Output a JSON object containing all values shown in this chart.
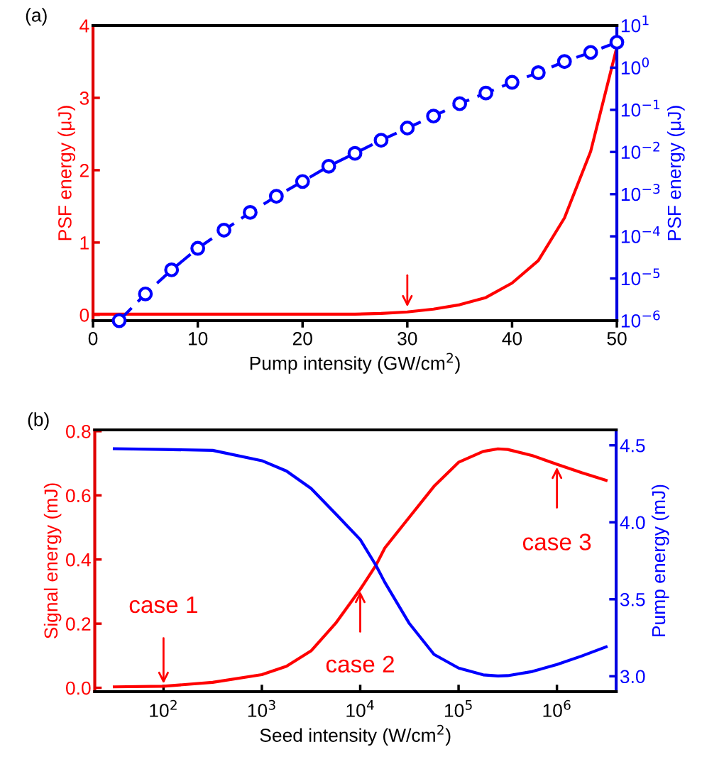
{
  "chart_data": [
    {
      "type": "line",
      "title": "(a)",
      "xlabel": "Pump intensity (GW/cm$^{2}$)",
      "ylabel": "PSF energy (μJ)",
      "y2label": "PSF energy (μJ)",
      "x": [
        0,
        2.5,
        5,
        7.5,
        10,
        12.5,
        15,
        17.5,
        20,
        22.5,
        25,
        27.5,
        30,
        32.5,
        35,
        37.5,
        40,
        42.5,
        45,
        47.5,
        50
      ],
      "series": [
        {
          "color": "#ff0000",
          "axis": "y",
          "marker": "none",
          "line_style": "solid",
          "values": [
            0.01,
            0.01,
            0.01,
            0.01,
            0.01,
            0.01,
            0.01,
            0.01,
            0.01,
            0.01,
            0.01,
            0.02,
            0.04,
            0.08,
            0.14,
            0.24,
            0.44,
            0.75,
            1.34,
            2.26,
            3.7
          ]
        },
        {
          "color": "#0000ff",
          "axis": "y2",
          "marker": "circle",
          "line_style": "dashed",
          "x": [
            2.5,
            5,
            7.5,
            10,
            12.5,
            15,
            17.5,
            20,
            22.5,
            25,
            27.5,
            30,
            32.5,
            35,
            37.5,
            40,
            42.5,
            45,
            47.5,
            50
          ],
          "values": [
            1e-06,
            4.3e-06,
            1.6e-05,
            5.2e-05,
            0.00014,
            0.00037,
            0.00089,
            0.002,
            0.0046,
            0.0093,
            0.019,
            0.037,
            0.071,
            0.14,
            0.25,
            0.45,
            0.76,
            1.4,
            2.3,
            4.0
          ]
        }
      ],
      "xlim": [
        0,
        50
      ],
      "xticks": [
        0,
        10,
        20,
        30,
        40,
        50
      ],
      "ylim": [
        -0.08,
        4
      ],
      "yticks": [
        0,
        1,
        2,
        3,
        4
      ],
      "log": "y2",
      "y2lim": [
        1e-06,
        10
      ],
      "y2ticks": [
        {
          "value": 1e-06,
          "label": "10$^{−6}$"
        },
        {
          "value": 1e-05,
          "label": "10$^{−5}$"
        },
        {
          "value": 0.0001,
          "label": "10$^{−4}$"
        },
        {
          "value": 0.001,
          "label": "10$^{−3}$"
        },
        {
          "value": 0.01,
          "label": "10$^{−2}$"
        },
        {
          "value": 0.1,
          "label": "10$^{−1}$"
        },
        {
          "value": 1,
          "label": "10$^{0}$"
        },
        {
          "value": 10,
          "label": "10$^{1}$"
        }
      ],
      "grid": false,
      "legend": false
    },
    {
      "type": "line",
      "title": "(b)",
      "xlabel": "Seed intensity (W/cm$^{2}$)",
      "ylabel": "Signal energy (mJ)",
      "y2label": "Pump energy (mJ)",
      "x": [
        31.6,
        100,
        316,
        1000,
        1778,
        3162,
        5623,
        10000,
        14454,
        17783,
        31623,
        56234,
        100000,
        177828,
        251189,
        316228,
        562341,
        1000000,
        1778279,
        3162278
      ],
      "series": [
        {
          "color": "#ff0000",
          "axis": "y",
          "values": [
            0.003,
            0.005,
            0.017,
            0.041,
            0.067,
            0.115,
            0.201,
            0.307,
            0.382,
            0.436,
            0.532,
            0.628,
            0.703,
            0.737,
            0.745,
            0.743,
            0.724,
            0.697,
            0.671,
            0.647
          ]
        },
        {
          "color": "#0000ff",
          "axis": "y2",
          "values": [
            4.478,
            4.473,
            4.467,
            4.4,
            4.333,
            4.22,
            4.055,
            3.888,
            3.72,
            3.61,
            3.342,
            3.142,
            3.053,
            3.009,
            3.002,
            3.004,
            3.031,
            3.076,
            3.131,
            3.191
          ]
        }
      ],
      "log": "x",
      "xlim": [
        20,
        4000000
      ],
      "xticks": [
        {
          "value": 100,
          "label": "10$^{2}$"
        },
        {
          "value": 1000,
          "label": "10$^{3}$"
        },
        {
          "value": 10000,
          "label": "10$^{4}$"
        },
        {
          "value": 100000,
          "label": "10$^{5}$"
        },
        {
          "value": 1000000,
          "label": "10$^{6}$"
        }
      ],
      "ylim": [
        -0.012,
        0.804
      ],
      "yticks": [
        {
          "value": 0,
          "label": "0.0"
        },
        0.2,
        0.4,
        0.6,
        0.8
      ],
      "y2lim": [
        2.9,
        4.6
      ],
      "y2ticks": [
        {
          "value": 3,
          "label": "3.0"
        },
        3.5,
        {
          "value": 4,
          "label": "4.0"
        },
        4.5
      ],
      "annotations": [
        {
          "text": "case 1",
          "x": 100,
          "y": 0.007
        },
        {
          "text": "case 2",
          "x": 10000,
          "y": 0.307
        },
        {
          "text": "case 3",
          "x": 1000000,
          "y": 0.694
        }
      ],
      "grid": false,
      "legend": false
    }
  ]
}
